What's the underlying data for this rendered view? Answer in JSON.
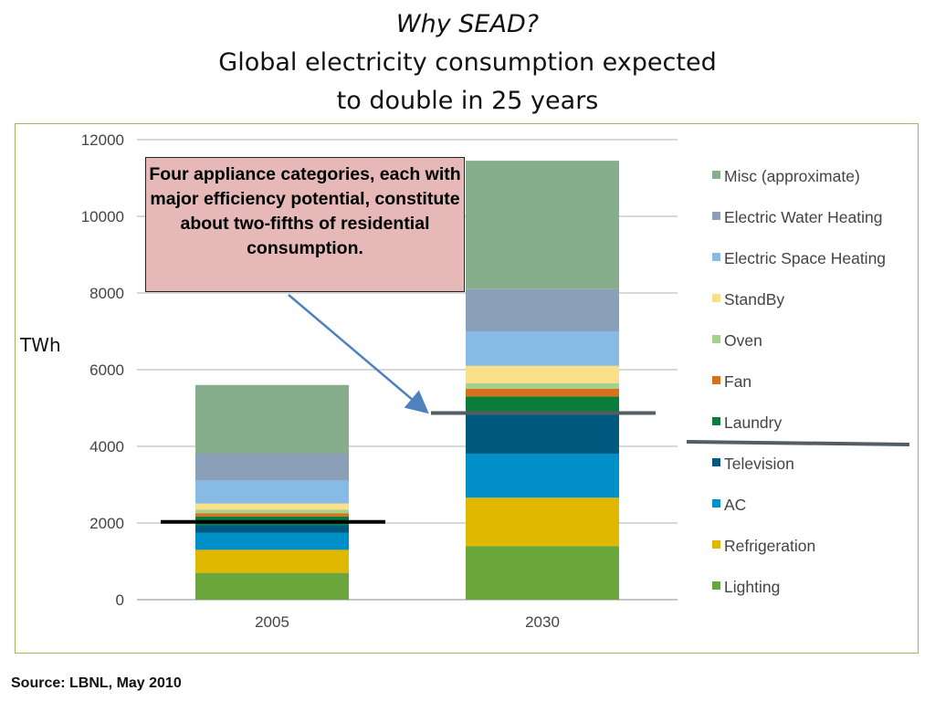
{
  "slide": {
    "title_line1": "Why SEAD?",
    "title_line2": "Global electricity consumption expected",
    "title_line3": "to double in 25 years",
    "source": "Source: LBNL, May 2010",
    "callout": "Four appliance categories, each with major efficiency potential, constitute about two-fifths of residential consumption."
  },
  "chart_data": {
    "type": "bar",
    "stacked": true,
    "categories": [
      "2005",
      "2030"
    ],
    "ylabel": "TWh",
    "ylim": [
      0,
      12000
    ],
    "yticks": [
      0,
      2000,
      4000,
      6000,
      8000,
      10000,
      12000
    ],
    "grid": true,
    "legend_position": "right",
    "series": [
      {
        "name": "Lighting",
        "color": "#6aa63c",
        "values": [
          700,
          1400
        ]
      },
      {
        "name": "Refrigeration",
        "color": "#e0b800",
        "values": [
          600,
          1260
        ]
      },
      {
        "name": "AC",
        "color": "#0090c8",
        "values": [
          450,
          1150
        ]
      },
      {
        "name": "Television",
        "color": "#005a80",
        "values": [
          200,
          1090
        ]
      },
      {
        "name": "Laundry",
        "color": "#0b7d3a",
        "values": [
          220,
          400
        ]
      },
      {
        "name": "Fan",
        "color": "#d9711a",
        "values": [
          80,
          200
        ]
      },
      {
        "name": "Oven",
        "color": "#a8d08d",
        "values": [
          100,
          150
        ]
      },
      {
        "name": "StandBy",
        "color": "#fbe08a",
        "values": [
          160,
          450
        ]
      },
      {
        "name": "Electric Space Heating",
        "color": "#87bbe6",
        "values": [
          600,
          900
        ]
      },
      {
        "name": "Electric Water Heating",
        "color": "#8aa0b8",
        "values": [
          700,
          1100
        ]
      },
      {
        "name": "Misc (approximate)",
        "color": "#86ad8c",
        "values": [
          1790,
          3350
        ]
      }
    ],
    "reference_lines": [
      {
        "category": "2005",
        "value": 2030
      },
      {
        "category": "2030",
        "value": 4870
      }
    ]
  }
}
